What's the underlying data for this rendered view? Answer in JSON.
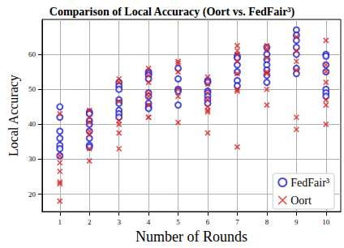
{
  "chart_data": {
    "type": "scatter",
    "title": "Comparison of Local Accuracy (Oort vs. FedFair³)",
    "x_label": "Number of Rounds",
    "y_label": "Local Accuracy",
    "xlim": [
      0.4,
      10.5
    ],
    "xticks": [
      1,
      2,
      3,
      4,
      5,
      6,
      7,
      8,
      9,
      10
    ],
    "ylim": [
      15,
      70
    ],
    "yticks": [
      20,
      30,
      40,
      50,
      60
    ],
    "grid": true,
    "legend": "lower right",
    "series": [
      {
        "name": "FedFair³",
        "color": "#1f1fd6",
        "marker": "circle",
        "x": [
          1,
          1,
          1,
          1,
          1,
          1,
          1,
          2,
          2,
          2,
          2,
          2,
          2,
          2,
          2,
          3,
          3,
          3,
          3,
          3,
          3,
          3,
          3,
          4,
          4,
          4,
          4,
          4,
          4,
          4,
          4,
          4,
          5,
          5,
          5,
          5,
          5,
          6,
          6,
          6,
          6,
          6,
          6,
          6,
          7,
          7,
          7,
          7,
          7,
          7,
          8,
          8,
          8,
          8,
          8,
          8,
          8,
          9,
          9,
          9,
          9,
          9,
          9,
          9,
          10,
          10,
          10,
          10,
          10,
          10,
          10
        ],
        "values": [
          45,
          42,
          38,
          36,
          34,
          33,
          31,
          43.5,
          43,
          41,
          40,
          38,
          36,
          34,
          33.5,
          52,
          51,
          50,
          47,
          46,
          44,
          43,
          42,
          55,
          54.5,
          54,
          53,
          49,
          48,
          46,
          45,
          44.5,
          56,
          53,
          50,
          49.5,
          45.5,
          52.5,
          52,
          49.5,
          49,
          48,
          47,
          46,
          59.5,
          59,
          57,
          55,
          52.5,
          51,
          62,
          60,
          58.5,
          57,
          55.5,
          54,
          52,
          67,
          65.5,
          64,
          62,
          60,
          56,
          54.5,
          60,
          59.5,
          57,
          55,
          50,
          49,
          48
        ]
      },
      {
        "name": "Oort",
        "color": "#e0201b",
        "marker": "x",
        "x": [
          1,
          1,
          1,
          1,
          1,
          1,
          1,
          2,
          2,
          2,
          2,
          2,
          2,
          2,
          3,
          3,
          3,
          3,
          3,
          3,
          3,
          4,
          4,
          4,
          4,
          4,
          4,
          4,
          4,
          5,
          5,
          5,
          5,
          5,
          5,
          6,
          6,
          6,
          6,
          6,
          6,
          6,
          6,
          7,
          7,
          7,
          7,
          7,
          7,
          7,
          7,
          8,
          8,
          8,
          8,
          8,
          8,
          8,
          9,
          9,
          9,
          9,
          9,
          9,
          10,
          10,
          10,
          10,
          10,
          10,
          10
        ],
        "values": [
          43,
          31,
          29,
          26.5,
          23.5,
          23,
          18,
          44,
          42,
          40.5,
          38,
          37,
          33,
          29.5,
          53,
          52,
          46.5,
          41,
          40,
          37.5,
          33,
          56,
          54,
          52,
          49,
          48,
          45.5,
          42,
          42,
          58,
          57.5,
          55,
          50,
          48,
          40.5,
          53.5,
          51.5,
          49,
          47,
          45,
          44,
          43.5,
          37.5,
          62.5,
          61,
          60,
          58,
          54.5,
          50,
          49.5,
          33.5,
          62.5,
          61.5,
          59,
          55,
          54.5,
          50,
          45.5,
          65,
          61,
          58,
          55.5,
          42,
          38.5,
          64,
          57,
          55,
          52,
          47,
          45.5,
          40
        ]
      }
    ]
  }
}
